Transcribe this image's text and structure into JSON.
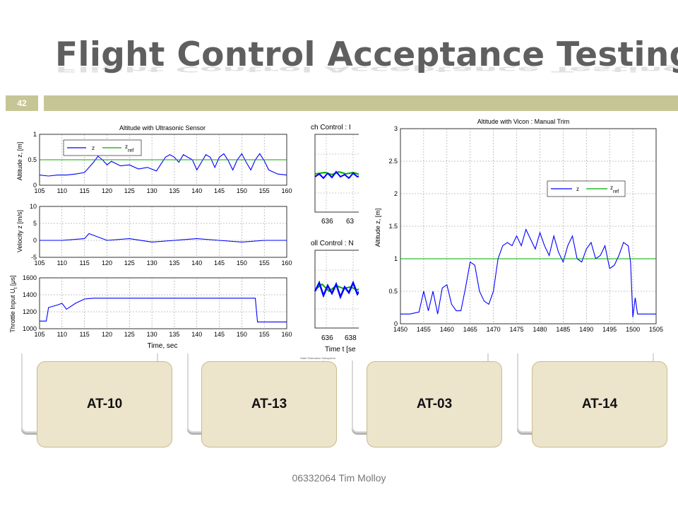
{
  "slide": {
    "title": "Flight Control Acceptance Testing",
    "page_number": "42",
    "footer": "06332064 Tim Molloy"
  },
  "cards": [
    {
      "label": "AT-10"
    },
    {
      "label": "AT-13"
    },
    {
      "label": "AT-03"
    },
    {
      "label": "AT-14"
    }
  ],
  "figure_left": {
    "title": "Altitude with Ultrasonic Sensor",
    "xlabel": "Time, sec",
    "xticks": [
      "105",
      "110",
      "115",
      "120",
      "125",
      "130",
      "135",
      "140",
      "145",
      "150",
      "155",
      "160"
    ],
    "panel1": {
      "ylabel": "Altitude z, [m]",
      "yticks": [
        "1",
        "0.5",
        "0"
      ],
      "legend": [
        "z",
        "z",
        "ref"
      ]
    },
    "panel2": {
      "ylabel": "Velocity z [m/s]",
      "yticks": [
        "10",
        "5",
        "0",
        "-5"
      ]
    },
    "panel3": {
      "ylabel": "Throttle Input U",
      "ylabel_sub": "t",
      "ylabel_unit": " [μs]",
      "yticks": [
        "1600",
        "1400",
        "1200",
        "1000"
      ]
    }
  },
  "figure_middle": {
    "top_title": "ch Control : I",
    "bottom_title": "oll Control : N",
    "xticks_top": [
      "636",
      "63"
    ],
    "xticks_bottom": [
      "636",
      "638"
    ],
    "xlabel": "Time t [se",
    "caption": "State Estimation Subsystem"
  },
  "figure_right": {
    "title": "Altitude with Vicon : Manual Trim",
    "ylabel": "Altitude z, [m]",
    "legend": [
      "z",
      "z",
      "ref"
    ],
    "xticks": [
      "1450",
      "1455",
      "1460",
      "1465",
      "1470",
      "1475",
      "1480",
      "1485",
      "1490",
      "1495",
      "1500",
      "1505"
    ],
    "yticks": [
      "3",
      "2.5",
      "2",
      "1.5",
      "1",
      "0.5",
      "0"
    ]
  },
  "chart_data": [
    {
      "type": "line",
      "title": "Altitude with Ultrasonic Sensor",
      "xlabel": "Time, sec",
      "ylabel": "Altitude z, [m]",
      "xlim": [
        105,
        160
      ],
      "ylim": [
        0,
        1
      ],
      "grid": true,
      "legend": "top-left",
      "series": [
        {
          "name": "z",
          "color": "#0000ff",
          "x": [
            105,
            107,
            109,
            111,
            113,
            115,
            117,
            118,
            119,
            120,
            121,
            123,
            125,
            127,
            129,
            131,
            133,
            134,
            135,
            136,
            137,
            139,
            140,
            141,
            142,
            143,
            144,
            145,
            146,
            147,
            148,
            149,
            150,
            151,
            152,
            153,
            154,
            155,
            156,
            158,
            160
          ],
          "y": [
            0.2,
            0.18,
            0.2,
            0.2,
            0.22,
            0.25,
            0.45,
            0.57,
            0.5,
            0.4,
            0.47,
            0.38,
            0.4,
            0.32,
            0.35,
            0.28,
            0.55,
            0.6,
            0.55,
            0.45,
            0.6,
            0.5,
            0.3,
            0.45,
            0.6,
            0.55,
            0.35,
            0.55,
            0.62,
            0.48,
            0.3,
            0.5,
            0.62,
            0.45,
            0.3,
            0.5,
            0.62,
            0.48,
            0.3,
            0.22,
            0.2
          ]
        },
        {
          "name": "z ref",
          "color": "#00aa00",
          "x": [
            105,
            160
          ],
          "y": [
            0.5,
            0.5
          ]
        }
      ]
    },
    {
      "type": "line",
      "xlabel": "Time, sec",
      "ylabel": "Velocity z [m/s]",
      "xlim": [
        105,
        160
      ],
      "ylim": [
        -5,
        10
      ],
      "grid": true,
      "series": [
        {
          "color": "#0000ff",
          "x": [
            105,
            110,
            115,
            116,
            120,
            125,
            130,
            135,
            140,
            145,
            150,
            155,
            160
          ],
          "y": [
            0,
            0,
            0.5,
            2,
            0,
            0.5,
            -0.5,
            0,
            0.5,
            0,
            -0.5,
            0,
            0
          ]
        }
      ]
    },
    {
      "type": "line",
      "xlabel": "Time, sec",
      "ylabel": "Throttle Input U [μs]",
      "xlim": [
        105,
        160
      ],
      "ylim": [
        1000,
        1600
      ],
      "grid": true,
      "series": [
        {
          "color": "#0000ff",
          "x": [
            105,
            106.5,
            107,
            109,
            110,
            111,
            113,
            115,
            117,
            120,
            130,
            140,
            150,
            153,
            153.5,
            155,
            160
          ],
          "y": [
            1090,
            1090,
            1250,
            1280,
            1300,
            1230,
            1300,
            1350,
            1360,
            1360,
            1360,
            1360,
            1360,
            1360,
            1080,
            1080,
            1080
          ]
        }
      ]
    },
    {
      "type": "line",
      "title": "Altitude with Vicon : Manual Trim",
      "ylabel": "Altitude z, [m]",
      "xlim": [
        1450,
        1505
      ],
      "ylim": [
        0,
        3
      ],
      "grid": true,
      "legend": "top-right",
      "series": [
        {
          "name": "z",
          "color": "#0000ff",
          "x": [
            1450,
            1452,
            1454,
            1455,
            1456,
            1457,
            1458,
            1459,
            1460,
            1461,
            1462,
            1463,
            1464,
            1465,
            1466,
            1467,
            1468,
            1469,
            1470,
            1471,
            1472,
            1473,
            1474,
            1475,
            1476,
            1477,
            1478,
            1479,
            1480,
            1481,
            1482,
            1483,
            1484,
            1485,
            1486,
            1487,
            1488,
            1489,
            1490,
            1491,
            1492,
            1493,
            1494,
            1495,
            1496,
            1497,
            1498,
            1499,
            1499.5,
            1500,
            1500.5,
            1501,
            1502,
            1505
          ],
          "y": [
            0.15,
            0.15,
            0.18,
            0.5,
            0.2,
            0.5,
            0.15,
            0.55,
            0.6,
            0.3,
            0.2,
            0.2,
            0.55,
            0.95,
            0.9,
            0.5,
            0.35,
            0.3,
            0.5,
            1.0,
            1.2,
            1.25,
            1.2,
            1.35,
            1.2,
            1.45,
            1.3,
            1.15,
            1.4,
            1.2,
            1.05,
            1.35,
            1.1,
            0.95,
            1.2,
            1.35,
            1.0,
            0.95,
            1.15,
            1.25,
            1.0,
            1.05,
            1.2,
            0.85,
            0.9,
            1.05,
            1.25,
            1.2,
            0.95,
            0.1,
            0.4,
            0.15,
            0.15,
            0.15
          ]
        },
        {
          "name": "z ref",
          "color": "#00aa00",
          "x": [
            1450,
            1505
          ],
          "y": [
            1,
            1
          ]
        }
      ]
    }
  ]
}
